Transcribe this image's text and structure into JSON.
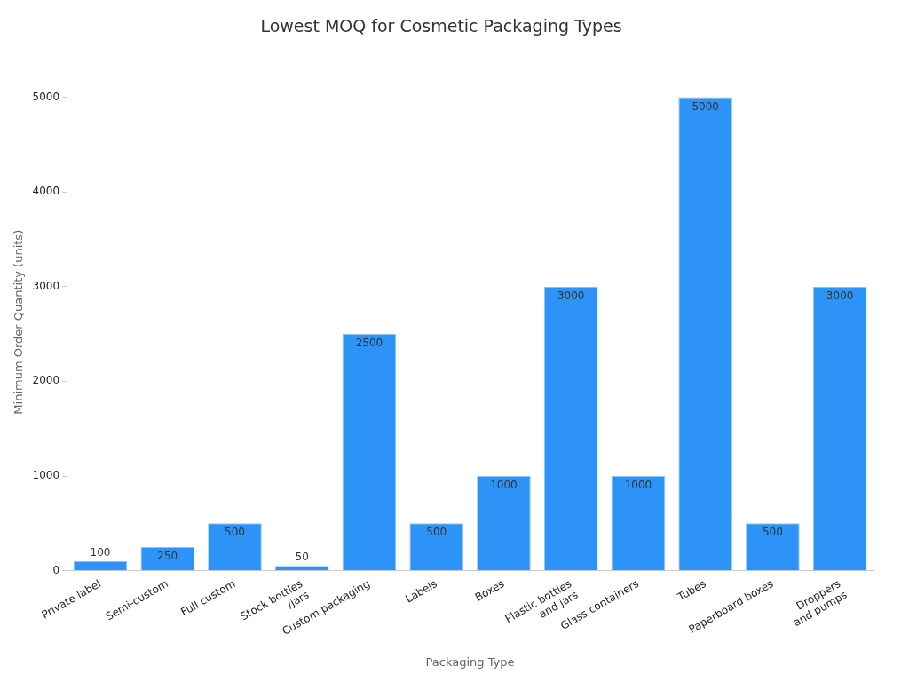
{
  "chart_data": {
    "type": "bar",
    "title": "Lowest MOQ for Cosmetic Packaging Types",
    "xlabel": "Packaging Type",
    "ylabel": "Minimum Order Quantity (units)",
    "categories": [
      "Private label",
      "Semi-custom",
      "Full custom",
      "Stock bottles\n/jars",
      "Custom packaging",
      "Labels",
      "Boxes",
      "Plastic bottles\nand jars",
      "Glass containers",
      "Tubes",
      "Paperboard boxes",
      "Droppers\nand pumps"
    ],
    "values": [
      100,
      250,
      500,
      50,
      2500,
      500,
      1000,
      3000,
      1000,
      5000,
      500,
      3000
    ],
    "color": "#2e93f7",
    "ylim": [
      0,
      5250
    ],
    "yticks": [
      0,
      1000,
      2000,
      3000,
      4000,
      5000
    ],
    "grid": false,
    "legend": false,
    "data_labels": true
  }
}
